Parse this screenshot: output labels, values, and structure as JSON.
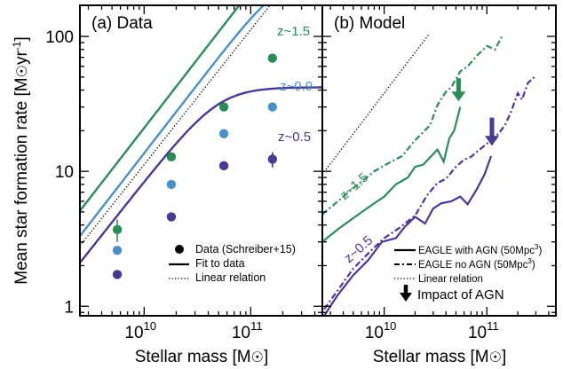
{
  "ylabel": "Mean star formation rate [M☉yr⁻¹]",
  "xlabel": "Stellar mass [M☉]",
  "colors": {
    "green": "#2e8b57",
    "blue": "#4a90c4",
    "purple": "#463a93"
  },
  "chart_data": [
    {
      "type": "scatter",
      "title": "(a) Data",
      "x_scale": "log",
      "y_scale": "log",
      "xlim": [
        2500000000.0,
        470000000000.0
      ],
      "ylim": [
        0.85,
        170
      ],
      "xticks": [
        {
          "value": 10000000000.0,
          "base": "10",
          "exp": "10"
        },
        {
          "value": 100000000000.0,
          "base": "10",
          "exp": "11"
        }
      ],
      "yticks": [
        {
          "value": 1,
          "label": "1"
        },
        {
          "value": 10,
          "label": "10"
        },
        {
          "value": 100,
          "label": "100"
        }
      ],
      "series": [
        {
          "name": "z~1.5",
          "color": "#2e8b57",
          "points": [
            [
              5600000000.0,
              3.7
            ],
            [
              18000000000.0,
              12.8
            ],
            [
              56000000000.0,
              30
            ],
            [
              160000000000.0,
              69
            ]
          ],
          "errors": [
            0.7,
            0,
            0,
            0
          ],
          "fit": {
            "A": 2.0,
            "alpha": 1.02,
            "M0": 360000000000.0,
            "p": 3.6
          }
        },
        {
          "name": "z~0.9",
          "color": "#4a90c4",
          "points": [
            [
              5600000000.0,
              2.6
            ],
            [
              18000000000.0,
              8.0
            ],
            [
              56000000000.0,
              19
            ],
            [
              160000000000.0,
              30
            ]
          ],
          "errors": [
            0,
            0,
            0,
            0
          ],
          "fit": {
            "A": 1.3,
            "alpha": 1.02,
            "M0": 180000000000.0,
            "p": 3.0
          }
        },
        {
          "name": "z~0.5",
          "color": "#463a93",
          "points": [
            [
              5600000000.0,
              1.72
            ],
            [
              18000000000.0,
              4.6
            ],
            [
              56000000000.0,
              11
            ],
            [
              160000000000.0,
              12.3
            ]
          ],
          "errors": [
            0,
            0,
            0,
            1.6
          ],
          "fit": {
            "A": 0.84,
            "alpha": 1.0,
            "M0": 50000000000.0,
            "p": 2.4
          }
        }
      ],
      "linear_relation": {
        "start": [
          2500000000.0,
          2.8
        ],
        "slope": 1
      },
      "legend": {
        "placement": "lower-right",
        "entries": [
          "Data (Schreiber+15)",
          "Fit to data",
          "Linear relation"
        ]
      }
    },
    {
      "type": "line",
      "title": "(b) Model",
      "x_scale": "log",
      "y_scale": "log",
      "xlim": [
        2500000000.0,
        470000000000.0
      ],
      "ylim": [
        0.85,
        170
      ],
      "xticks": [
        {
          "value": 10000000000.0,
          "base": "10",
          "exp": "10"
        },
        {
          "value": 100000000000.0,
          "base": "10",
          "exp": "11"
        }
      ],
      "series": [
        {
          "name": "z~1.5 EAGLE with AGN",
          "label": "z~1.5",
          "color": "#2e8b57",
          "style": "solid",
          "points": [
            [
              2500000000.0,
              3.0
            ],
            [
              3500000000.0,
              3.7
            ],
            [
              5000000000.0,
              4.5
            ],
            [
              7000000000.0,
              5.4
            ],
            [
              10000000000.0,
              6.5
            ],
            [
              13000000000.0,
              8.0
            ],
            [
              17000000000.0,
              9.0
            ],
            [
              20000000000.0,
              10.8
            ],
            [
              24000000000.0,
              11.2
            ],
            [
              28000000000.0,
              12.7
            ],
            [
              33000000000.0,
              14.5
            ],
            [
              38000000000.0,
              11.8
            ],
            [
              43000000000.0,
              17.5
            ],
            [
              48000000000.0,
              20
            ],
            [
              55000000000.0,
              30
            ]
          ]
        },
        {
          "name": "z~1.5 EAGLE no AGN",
          "color": "#2e8b57",
          "style": "dashdot",
          "points": [
            [
              2500000000.0,
              4.8
            ],
            [
              4000000000.0,
              6.5
            ],
            [
              6000000000.0,
              8.4
            ],
            [
              8000000000.0,
              10
            ],
            [
              11000000000.0,
              11.5
            ],
            [
              15000000000.0,
              13
            ],
            [
              20000000000.0,
              17
            ],
            [
              28000000000.0,
              22
            ],
            [
              33000000000.0,
              31
            ],
            [
              40000000000.0,
              39
            ],
            [
              45000000000.0,
              42
            ],
            [
              55000000000.0,
              55
            ],
            [
              65000000000.0,
              60
            ],
            [
              80000000000.0,
              72
            ],
            [
              100000000000.0,
              85
            ],
            [
              120000000000.0,
              80
            ],
            [
              140000000000.0,
              100
            ]
          ]
        },
        {
          "name": "z~0.5 EAGLE with AGN",
          "label": "z~0.5",
          "color": "#463a93",
          "style": "solid",
          "points": [
            [
              2600000000.0,
              0.85
            ],
            [
              3500000000.0,
              1.2
            ],
            [
              5000000000.0,
              1.7
            ],
            [
              7000000000.0,
              2.2
            ],
            [
              9500000000.0,
              3.0
            ],
            [
              13000000000.0,
              3.2
            ],
            [
              16000000000.0,
              3.9
            ],
            [
              20000000000.0,
              4.6
            ],
            [
              25000000000.0,
              4.1
            ],
            [
              30000000000.0,
              5.3
            ],
            [
              36000000000.0,
              5.8
            ],
            [
              45000000000.0,
              6.0
            ],
            [
              55000000000.0,
              6.5
            ],
            [
              65000000000.0,
              5.7
            ],
            [
              80000000000.0,
              7.4
            ],
            [
              95000000000.0,
              9.5
            ],
            [
              110000000000.0,
              13
            ]
          ]
        },
        {
          "name": "z~0.5 EAGLE no AGN",
          "color": "#463a93",
          "style": "dashdot",
          "points": [
            [
              2600000000.0,
              0.95
            ],
            [
              5000000000.0,
              1.9
            ],
            [
              7500000000.0,
              2.6
            ],
            [
              10000000000.0,
              3.2
            ],
            [
              14000000000.0,
              3.8
            ],
            [
              20000000000.0,
              4.7
            ],
            [
              26000000000.0,
              6.6
            ],
            [
              33000000000.0,
              8.2
            ],
            [
              40000000000.0,
              8.8
            ],
            [
              50000000000.0,
              10.8
            ],
            [
              60000000000.0,
              12.2
            ],
            [
              70000000000.0,
              12.8
            ],
            [
              85000000000.0,
              14.5
            ],
            [
              100000000000.0,
              16
            ],
            [
              130000000000.0,
              19
            ],
            [
              150000000000.0,
              22
            ],
            [
              170000000000.0,
              27
            ],
            [
              200000000000.0,
              38
            ],
            [
              220000000000.0,
              34
            ],
            [
              250000000000.0,
              45
            ],
            [
              290000000000.0,
              50
            ]
          ]
        }
      ],
      "linear_relation": {
        "start": [
          2500000000.0,
          9.5
        ],
        "slope": 1,
        "end_x": 27000000000.0
      },
      "arrows": [
        {
          "x": 53000000000.0,
          "y_top": 49,
          "y_bottom": 33,
          "color": "#2e8b57"
        },
        {
          "x": 112000000000.0,
          "y_top": 25,
          "y_bottom": 15.5,
          "color": "#463a93"
        }
      ],
      "legend": {
        "placement": "lower-right",
        "entries": [
          {
            "label": "EAGLE with AGN (50Mpc",
            "sup": "3",
            "suffix": ")"
          },
          {
            "label": "EAGLE no AGN (50Mpc",
            "sup": "3",
            "suffix": ")"
          },
          {
            "label": "Linear relation"
          },
          {
            "label": "Impact of AGN"
          }
        ]
      }
    }
  ]
}
